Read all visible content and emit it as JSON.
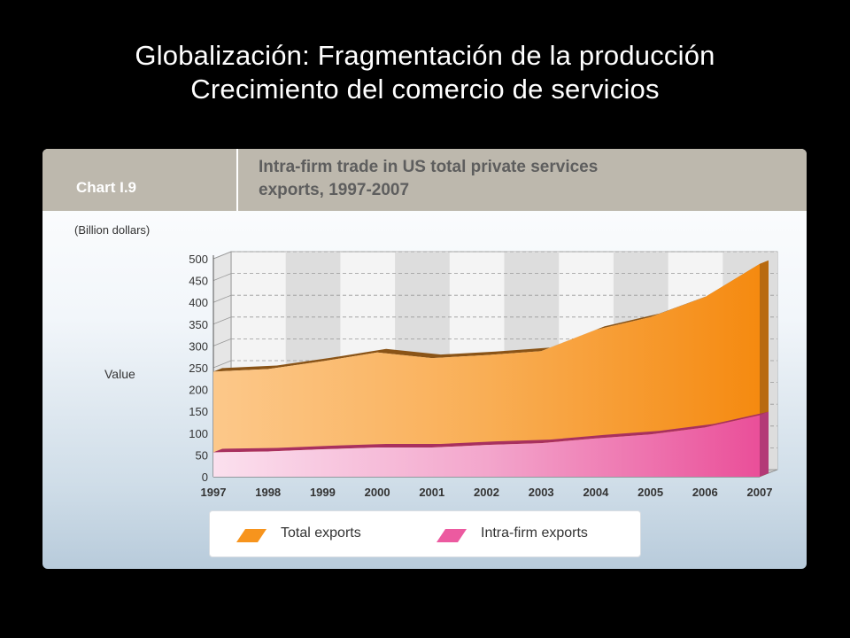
{
  "slide": {
    "title_line1": "Globalización: Fragmentación de la producción",
    "title_line2": "Crecimiento del comercio de servicios"
  },
  "chart_panel": {
    "chart_label": "Chart I.9",
    "chart_title_line1": "Intra-firm trade in US total private services",
    "chart_title_line2": "exports, 1997-2007",
    "unit_label": "(Billion dollars)",
    "value_label": "Value"
  },
  "colors": {
    "total_exports": "#f7941d",
    "intra_firm_exports": "#ec5aa0",
    "header_band": "#bdb8ad"
  },
  "chart_data": {
    "type": "area",
    "title": "Intra-firm trade in US total private services exports, 1997-2007",
    "ylabel": "Value",
    "unit": "(Billion dollars)",
    "x": [
      "1997",
      "1998",
      "1999",
      "2000",
      "2001",
      "2002",
      "2003",
      "2004",
      "2005",
      "2006",
      "2007"
    ],
    "yticks": [
      "0",
      "50",
      "100",
      "150",
      "200",
      "250",
      "300",
      "350",
      "400",
      "450",
      "500"
    ],
    "ylim": [
      0,
      500
    ],
    "grid": true,
    "legend_position": "bottom",
    "series": [
      {
        "name": "Total exports",
        "color": "#f7941d",
        "values": [
          241,
          247,
          265,
          285,
          272,
          279,
          288,
          337,
          366,
          412,
          488
        ]
      },
      {
        "name": "Intra-firm exports",
        "color": "#ec5aa0",
        "values": [
          56,
          58,
          63,
          67,
          67,
          73,
          77,
          88,
          97,
          113,
          141
        ]
      }
    ]
  }
}
